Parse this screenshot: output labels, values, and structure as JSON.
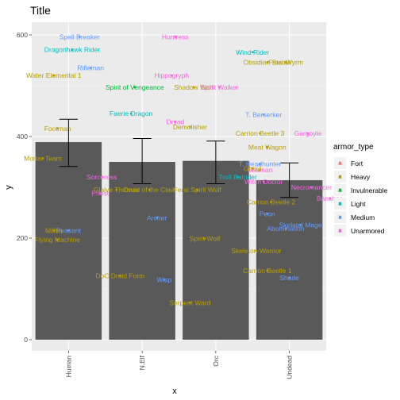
{
  "chart_data": {
    "type": "bar",
    "title": "Title",
    "xlabel": "x",
    "ylabel": "y",
    "ylim": [
      -15,
      630
    ],
    "yticks": [
      0,
      200,
      400,
      600
    ],
    "grid": true,
    "legend_position": "right",
    "legend_title": "armor_type",
    "categories": [
      "Human",
      "N.Elf",
      "Orc",
      "Undead"
    ],
    "bars": [
      {
        "category": "Human",
        "value": 389,
        "err_low": 341,
        "err_high": 434
      },
      {
        "category": "N.Elf",
        "value": 350,
        "err_low": 307,
        "err_high": 396
      },
      {
        "category": "Orc",
        "value": 352,
        "err_low": 307,
        "err_high": 391
      },
      {
        "category": "Undead",
        "value": 314,
        "err_low": 280,
        "err_high": 348
      }
    ],
    "series": [
      {
        "name": "Fort",
        "color": "#F8766D"
      },
      {
        "name": "Heavy",
        "color": "#B79F00"
      },
      {
        "name": "Invulnerable",
        "color": "#00BA38"
      },
      {
        "name": "Light",
        "color": "#00BFC4"
      },
      {
        "name": "Medium",
        "color": "#619CFF"
      },
      {
        "name": "Unarmored",
        "color": "#F564E3"
      }
    ],
    "points": [
      {
        "label": "Spell Breaker",
        "category": "Human",
        "dx": 0.15,
        "y": 596,
        "type": "Medium"
      },
      {
        "label": "Dragonhawk Rider",
        "category": "Human",
        "dx": 0.05,
        "y": 571,
        "type": "Light"
      },
      {
        "label": "Rifleman",
        "category": "Human",
        "dx": 0.3,
        "y": 535,
        "type": "Medium"
      },
      {
        "label": "Water Elemental 1",
        "category": "Human",
        "dx": -0.2,
        "y": 520,
        "type": "Heavy"
      },
      {
        "label": "Footman",
        "category": "Human",
        "dx": -0.15,
        "y": 416,
        "type": "Heavy"
      },
      {
        "label": "Mortar Team",
        "category": "Human",
        "dx": -0.35,
        "y": 357,
        "type": "Heavy"
      },
      {
        "label": "Sorceress",
        "category": "Human",
        "dx": 0.45,
        "y": 320,
        "type": "Unarmored"
      },
      {
        "label": "Priest",
        "category": "Human",
        "dx": 0.43,
        "y": 288,
        "type": "Unarmored"
      },
      {
        "label": "Militia",
        "category": "Human",
        "dx": -0.2,
        "y": 215,
        "type": "Heavy"
      },
      {
        "label": "Peasant",
        "category": "Human",
        "dx": 0.0,
        "y": 215,
        "type": "Medium"
      },
      {
        "label": "Flying Machine",
        "category": "Human",
        "dx": -0.15,
        "y": 197,
        "type": "Heavy"
      },
      {
        "label": "Huntress",
        "category": "N.Elf",
        "dx": 0.45,
        "y": 596,
        "type": "Unarmored"
      },
      {
        "label": "Spirit of Vengeance",
        "category": "N.Elf",
        "dx": -0.1,
        "y": 497,
        "type": "Invulnerable"
      },
      {
        "label": "Hippogryph",
        "category": "N.Elf",
        "dx": 0.4,
        "y": 520,
        "type": "Unarmored"
      },
      {
        "label": "Faerie Dragon",
        "category": "N.Elf",
        "dx": -0.15,
        "y": 445,
        "type": "Light"
      },
      {
        "label": "Dryad",
        "category": "N.Elf",
        "dx": 0.45,
        "y": 429,
        "type": "Unarmored"
      },
      {
        "label": "Demolisher",
        "category": "N.Elf",
        "dx": 0.65,
        "y": 419,
        "type": "Heavy"
      },
      {
        "label": "Glaive Thrower",
        "category": "N.Elf",
        "dx": -0.35,
        "y": 295,
        "type": "Heavy"
      },
      {
        "label": "Druid of the Claw",
        "category": "N.Elf",
        "dx": 0.1,
        "y": 295,
        "type": "Heavy"
      },
      {
        "label": "Archer",
        "category": "N.Elf",
        "dx": 0.2,
        "y": 240,
        "type": "Medium"
      },
      {
        "label": "DoC Druid Form",
        "category": "N.Elf",
        "dx": -0.3,
        "y": 126,
        "type": "Heavy"
      },
      {
        "label": "Wisp",
        "category": "N.Elf",
        "dx": 0.3,
        "y": 118,
        "type": "Medium"
      },
      {
        "label": "Shadow Wolf",
        "category": "Orc",
        "dx": -0.3,
        "y": 497,
        "type": "Heavy"
      },
      {
        "label": "Wind Rider",
        "category": "Orc",
        "dx": 0.5,
        "y": 566,
        "type": "Light"
      },
      {
        "label": "Spirit Walker",
        "category": "Orc",
        "dx": 0.05,
        "y": 497,
        "type": "Unarmored"
      },
      {
        "label": "T. Berserker",
        "category": "Orc",
        "dx": 0.65,
        "y": 443,
        "type": "Medium"
      },
      {
        "label": "Troll Batrider",
        "category": "Orc",
        "dx": 0.3,
        "y": 320,
        "type": "Light"
      },
      {
        "label": "T. Headhunter",
        "category": "Orc",
        "dx": 0.6,
        "y": 346,
        "type": "Medium"
      },
      {
        "label": "Shaman",
        "category": "Orc",
        "dx": 0.6,
        "y": 334,
        "type": "Unarmored"
      },
      {
        "label": "Witch Doctor",
        "category": "Orc",
        "dx": 0.65,
        "y": 311,
        "type": "Unarmored"
      },
      {
        "label": "Feral Spirit Wolf",
        "category": "Orc",
        "dx": -0.25,
        "y": 295,
        "type": "Heavy"
      },
      {
        "label": "Peon",
        "category": "Orc",
        "dx": 0.7,
        "y": 248,
        "type": "Medium"
      },
      {
        "label": "Spirit Wolf",
        "category": "Orc",
        "dx": -0.15,
        "y": 199,
        "type": "Heavy"
      },
      {
        "label": "Serpent Ward",
        "category": "Orc",
        "dx": -0.35,
        "y": 73,
        "type": "Heavy"
      },
      {
        "label": "Obsidian Statue",
        "category": "Undead",
        "dx": -0.3,
        "y": 546,
        "type": "Heavy"
      },
      {
        "label": "Frost Wyrm",
        "category": "Undead",
        "dx": -0.05,
        "y": 546,
        "type": "Heavy"
      },
      {
        "label": "Ghoul",
        "category": "Undead",
        "dx": -0.5,
        "y": 337,
        "type": "Heavy"
      },
      {
        "label": "Carrion Beetle 3",
        "category": "Undead",
        "dx": -0.4,
        "y": 406,
        "type": "Heavy"
      },
      {
        "label": "Gargoyle",
        "category": "Undead",
        "dx": 0.25,
        "y": 406,
        "type": "Unarmored"
      },
      {
        "label": "Meat Wagon",
        "category": "Undead",
        "dx": -0.3,
        "y": 379,
        "type": "Heavy"
      },
      {
        "label": "Necromancer",
        "category": "Undead",
        "dx": 0.3,
        "y": 300,
        "type": "Unarmored"
      },
      {
        "label": "Banshee",
        "category": "Undead",
        "dx": 0.55,
        "y": 278,
        "type": "Unarmored"
      },
      {
        "label": "Carrion Beetle 2",
        "category": "Undead",
        "dx": -0.25,
        "y": 271,
        "type": "Heavy"
      },
      {
        "label": "Skeletal Mage",
        "category": "Undead",
        "dx": 0.15,
        "y": 226,
        "type": "Medium"
      },
      {
        "label": "Abomination",
        "category": "Undead",
        "dx": -0.05,
        "y": 219,
        "type": "Medium"
      },
      {
        "label": "Skeleton Warrior",
        "category": "Undead",
        "dx": -0.45,
        "y": 175,
        "type": "Heavy"
      },
      {
        "label": "Carrion Beetle 1",
        "category": "Undead",
        "dx": -0.3,
        "y": 136,
        "type": "Heavy"
      },
      {
        "label": "Shade",
        "category": "Undead",
        "dx": 0.0,
        "y": 122,
        "type": "Medium"
      }
    ]
  }
}
